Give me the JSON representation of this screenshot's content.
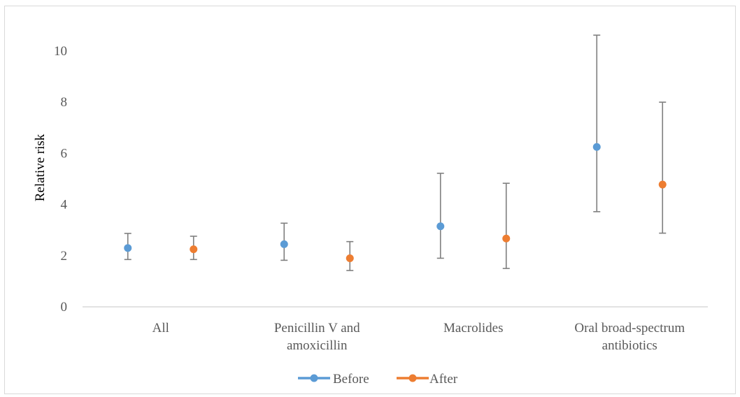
{
  "chart_data": {
    "type": "scatter",
    "title": "",
    "xlabel": "",
    "ylabel": "Relative risk",
    "ylim": [
      0,
      11
    ],
    "yticks": [
      0,
      2,
      4,
      6,
      8,
      10
    ],
    "grid": false,
    "legend_position": "bottom",
    "categories": [
      [
        "All"
      ],
      [
        "Penicillin V and",
        "amoxicillin"
      ],
      [
        "Macrolides"
      ],
      [
        "Oral broad-spectrum",
        "antibiotics"
      ]
    ],
    "series": [
      {
        "name": "Before",
        "color": "#5b9bd5",
        "values": [
          2.3,
          2.45,
          3.15,
          6.25
        ],
        "lower": [
          1.85,
          1.82,
          1.9,
          3.72
        ],
        "upper": [
          2.87,
          3.27,
          5.22,
          10.62
        ]
      },
      {
        "name": "After",
        "color": "#ed7d31",
        "values": [
          2.25,
          1.9,
          2.67,
          4.78
        ],
        "lower": [
          1.85,
          1.42,
          1.5,
          2.88
        ],
        "upper": [
          2.76,
          2.55,
          4.83,
          8.0
        ]
      }
    ],
    "errorbar_color": "#7f7f7f",
    "axis_color": "#d9d9d9"
  }
}
